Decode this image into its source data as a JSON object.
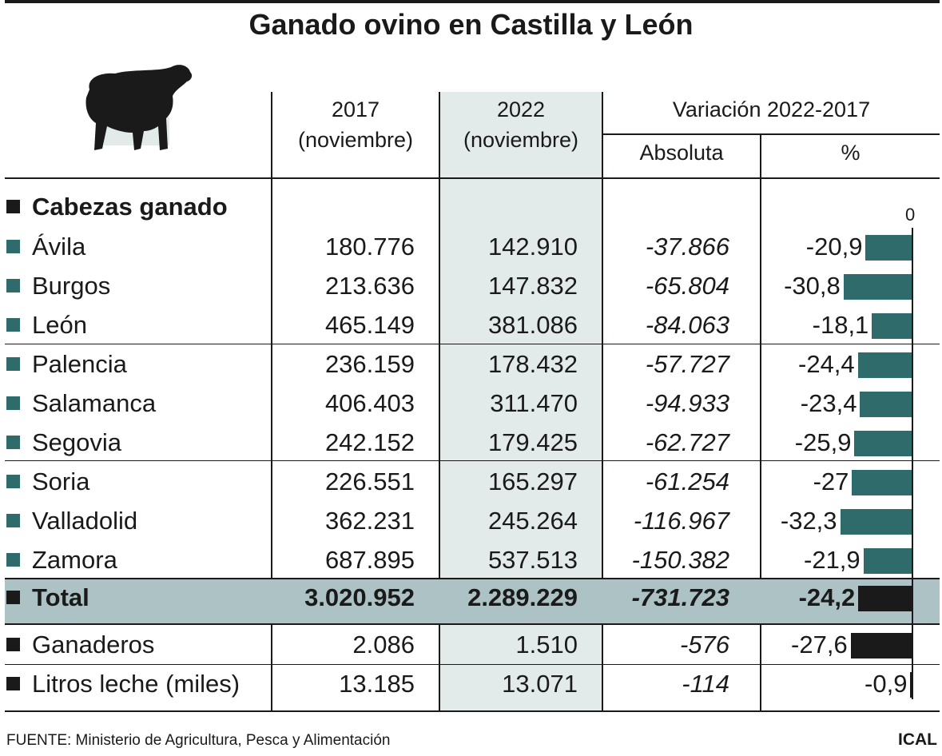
{
  "title": "Ganado ovino en Castilla y León",
  "colors": {
    "teal": "#2f6b6b",
    "dark": "#1a1a1a",
    "total_band": "#adc2c5",
    "col2022": "#e2ebea"
  },
  "icons": {
    "sheep": "sheep-icon"
  },
  "header": {
    "col2017_line1": "2017",
    "col2017_line2": "(noviembre)",
    "col2022_line1": "2022",
    "col2022_line2": "(noviembre)",
    "variation": "Variación 2022-2017",
    "absolute": "Absoluta",
    "percent": "%"
  },
  "section_label": "Cabezas ganado",
  "zero_label": "0",
  "chart_data": {
    "type": "table",
    "title": "Ganado ovino en Castilla y León",
    "columns": [
      "2017 (noviembre)",
      "2022 (noviembre)",
      "Absoluta",
      "%"
    ],
    "rows": [
      {
        "label": "Ávila",
        "y2017": "180.776",
        "y2022": "142.910",
        "abs": "-37.866",
        "pct_text": "-20,9",
        "pct": -20.9
      },
      {
        "label": "Burgos",
        "y2017": "213.636",
        "y2022": "147.832",
        "abs": "-65.804",
        "pct_text": "-30,8",
        "pct": -30.8
      },
      {
        "label": "León",
        "y2017": "465.149",
        "y2022": "381.086",
        "abs": "-84.063",
        "pct_text": "-18,1",
        "pct": -18.1
      },
      {
        "label": "Palencia",
        "y2017": "236.159",
        "y2022": "178.432",
        "abs": "-57.727",
        "pct_text": "-24,4",
        "pct": -24.4
      },
      {
        "label": "Salamanca",
        "y2017": "406.403",
        "y2022": "311.470",
        "abs": "-94.933",
        "pct_text": "-23,4",
        "pct": -23.4
      },
      {
        "label": "Segovia",
        "y2017": "242.152",
        "y2022": "179.425",
        "abs": "-62.727",
        "pct_text": "-25,9",
        "pct": -25.9
      },
      {
        "label": "Soria",
        "y2017": "226.551",
        "y2022": "165.297",
        "abs": "-61.254",
        "pct_text": "-27",
        "pct": -27
      },
      {
        "label": "Valladolid",
        "y2017": "362.231",
        "y2022": "245.264",
        "abs": "-116.967",
        "pct_text": "-32,3",
        "pct": -32.3
      },
      {
        "label": "Zamora",
        "y2017": "687.895",
        "y2022": "537.513",
        "abs": "-150.382",
        "pct_text": "-21,9",
        "pct": -21.9
      }
    ],
    "total": {
      "label": "Total",
      "y2017": "3.020.952",
      "y2022": "2.289.229",
      "abs": "-731.723",
      "pct_text": "-24,2",
      "pct": -24.2
    },
    "extra": [
      {
        "label": "Ganaderos",
        "y2017": "2.086",
        "y2022": "1.510",
        "abs": "-576",
        "pct_text": "-27,6",
        "pct": -27.6
      },
      {
        "label": "Litros leche (miles)",
        "y2017": "13.185",
        "y2022": "13.071",
        "abs": "-114",
        "pct_text": "-0,9",
        "pct": -0.9
      }
    ]
  },
  "footer": {
    "source": "FUENTE: Ministerio de Agricultura, Pesca y Alimentación",
    "brand": "ICAL"
  }
}
